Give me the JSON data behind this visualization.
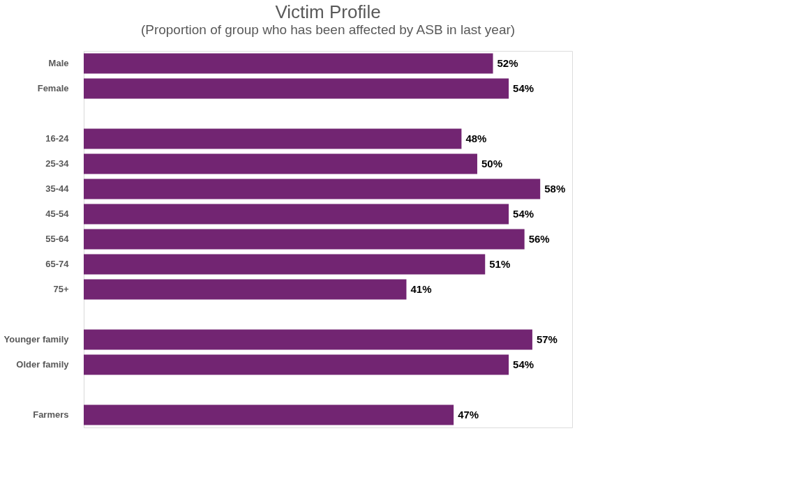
{
  "chart_data": {
    "type": "bar",
    "orientation": "horizontal",
    "title": "Victim Profile",
    "subtitle": "(Proportion of group who has been affected by ASB in last year)",
    "categories": [
      "Male",
      "Female",
      null,
      "16-24",
      "25-34",
      "35-44",
      "45-54",
      "55-64",
      "65-74",
      "75+",
      null,
      "Younger family",
      "Older family",
      null,
      "Farmers"
    ],
    "values": [
      52,
      54,
      null,
      48,
      50,
      58,
      54,
      56,
      51,
      41,
      null,
      57,
      54,
      null,
      47
    ],
    "value_labels": [
      "52%",
      "54%",
      null,
      "48%",
      "50%",
      "58%",
      "54%",
      "56%",
      "51%",
      "41%",
      null,
      "57%",
      "54%",
      null,
      "47%"
    ],
    "color": "#722572",
    "tick_labels": "y"
  }
}
